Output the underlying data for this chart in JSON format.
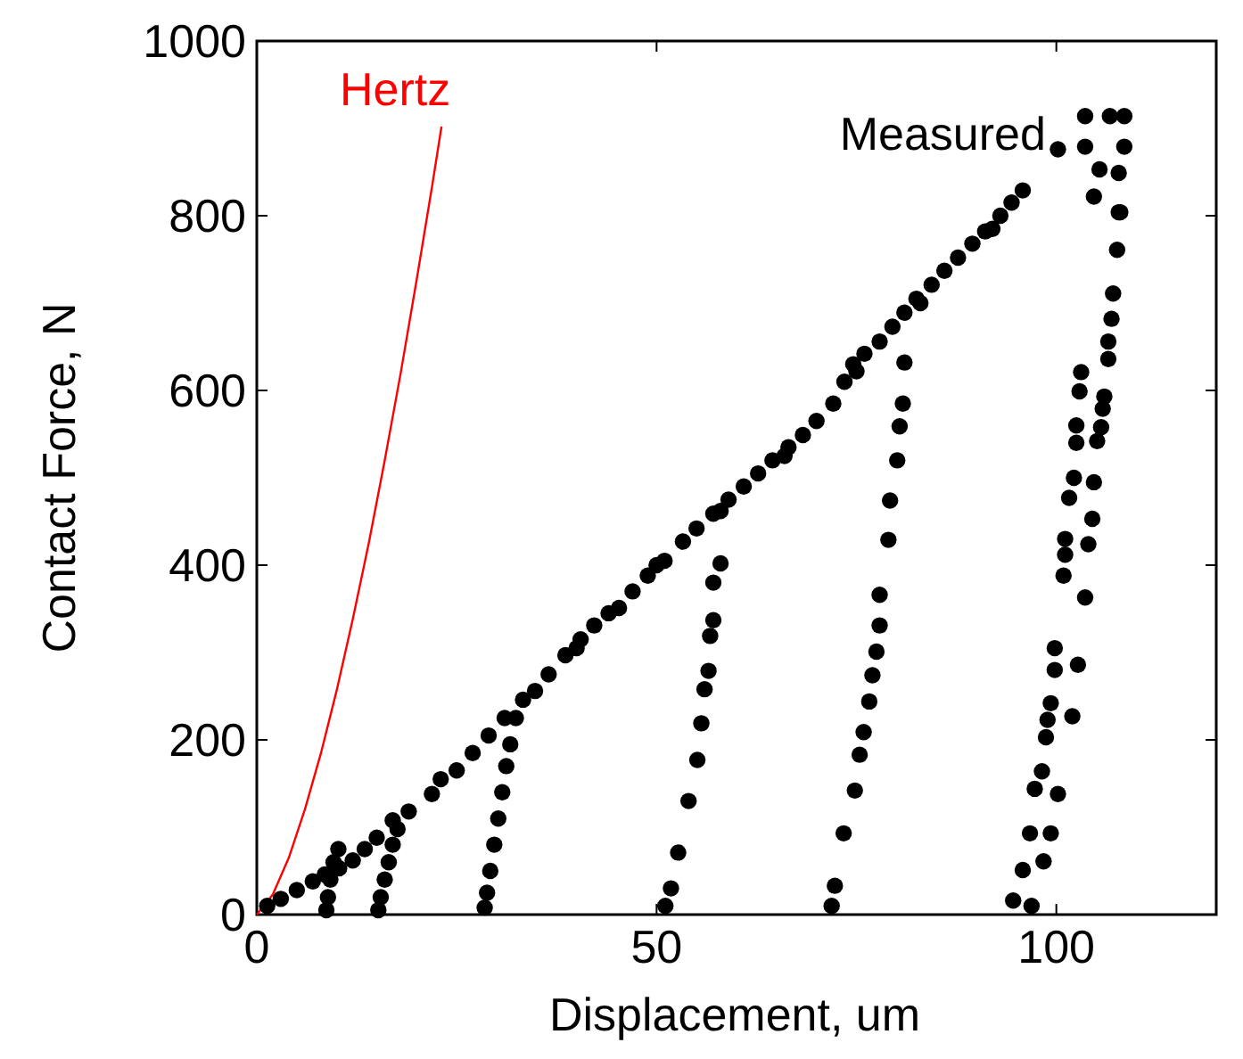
{
  "chart_data": {
    "type": "scatter",
    "xlabel": "Displacement, um",
    "ylabel": "Contact Force, N",
    "xlim": [
      0,
      120
    ],
    "ylim": [
      0,
      1000
    ],
    "xticks": [
      0,
      50,
      100
    ],
    "yticks": [
      0,
      200,
      400,
      600,
      800,
      1000
    ],
    "grid": false,
    "series": [
      {
        "name": "Hertz",
        "type": "line",
        "color": "#ff0000",
        "marker": "none",
        "line_style": "solid",
        "x": [
          0,
          2,
          4,
          6,
          8,
          10,
          12,
          14,
          16,
          18,
          20,
          22,
          23.1
        ],
        "values": [
          0,
          23,
          65,
          120,
          184,
          257,
          338,
          425,
          520,
          620,
          727,
          838,
          902
        ]
      },
      {
        "name": "Measured",
        "color": "#000000",
        "marker": "circle",
        "x": [
          1.3,
          3,
          5,
          7,
          8.5,
          10.3,
          12,
          13.5,
          15,
          17,
          19,
          21.9,
          23,
          25,
          27,
          29,
          31,
          33.3,
          34.8,
          36.5,
          38.6,
          40.5,
          42.2,
          44,
          45.3,
          47,
          48.9,
          51,
          53.3,
          55,
          57.1,
          59,
          60.9,
          62.7,
          64.5,
          66.5,
          68.3,
          70,
          72.1,
          73.5,
          74.6,
          76,
          77.9,
          79.5,
          81,
          82.5,
          84.4,
          86,
          87.7,
          89.5,
          91.1,
          93,
          94.4,
          95.8,
          40,
          50,
          58,
          66,
          75,
          83,
          92,
          8.7,
          8.9,
          9.2,
          9.6,
          10.2,
          15.2,
          15.5,
          16,
          16.5,
          17,
          17.6,
          28.5,
          28.8,
          29.2,
          29.7,
          30.2,
          30.7,
          31.2,
          31.7,
          32.4,
          51.1,
          51.8,
          52.7,
          54,
          55.1,
          55.6,
          56,
          56.5,
          56.7,
          57.1,
          57.1,
          58,
          71.9,
          72.3,
          73.4,
          74.8,
          75.4,
          75.9,
          76.6,
          77,
          77.5,
          77.9,
          77.9,
          79,
          79.2,
          80.1,
          80.4,
          80.8,
          81,
          96.9,
          94.6,
          95.8,
          98.4,
          96.7,
          99.3,
          97.3,
          100.2,
          98.2,
          98.7,
          98.9,
          99.3,
          102,
          99.8,
          99.8,
          102.7,
          103.6,
          100.9,
          101.1,
          101.1,
          104,
          104.5,
          101.6,
          102.2,
          104.7,
          102.5,
          102.5,
          105.1,
          105.6,
          105.8,
          106,
          102.9,
          103.1,
          106.5,
          106.5,
          106.9,
          107.1,
          107.6,
          108,
          104.7,
          103.6,
          106.7,
          108.5,
          103.6,
          108.5,
          105.4,
          107.8,
          107.8,
          100.2
        ],
        "values": [
          10,
          18,
          28,
          38,
          46,
          53,
          62,
          75,
          88,
          108,
          118,
          138,
          155,
          165,
          185,
          205,
          225,
          246,
          256,
          275,
          297,
          315,
          331,
          345,
          351,
          370,
          388,
          405,
          427,
          442,
          459,
          475,
          490,
          505,
          520,
          535,
          549,
          565,
          585,
          610,
          630,
          642,
          656,
          673,
          689,
          705,
          721,
          737,
          752,
          768,
          782,
          800,
          815,
          829,
          305,
          400,
          462,
          525,
          622,
          700,
          785,
          5,
          20,
          40,
          60,
          75,
          5,
          20,
          40,
          60,
          80,
          98,
          8,
          25,
          50,
          80,
          110,
          140,
          170,
          195,
          225,
          10,
          30,
          71,
          130,
          177,
          219,
          258,
          279,
          319,
          337,
          380,
          402,
          10,
          33,
          93,
          142,
          183,
          209,
          244,
          274,
          301,
          331,
          366,
          429,
          474,
          520,
          559,
          585,
          632,
          10,
          16,
          51,
          61,
          93,
          93,
          144,
          138,
          164,
          203,
          223,
          242,
          227,
          280,
          305,
          286,
          363,
          388,
          412,
          430,
          424,
          453,
          477,
          500,
          495,
          540,
          560,
          542,
          558,
          579,
          593,
          599,
          621,
          636,
          656,
          682,
          711,
          761,
          804,
          822,
          914,
          914,
          914,
          879,
          879,
          853,
          849,
          804,
          876
        ]
      }
    ]
  }
}
